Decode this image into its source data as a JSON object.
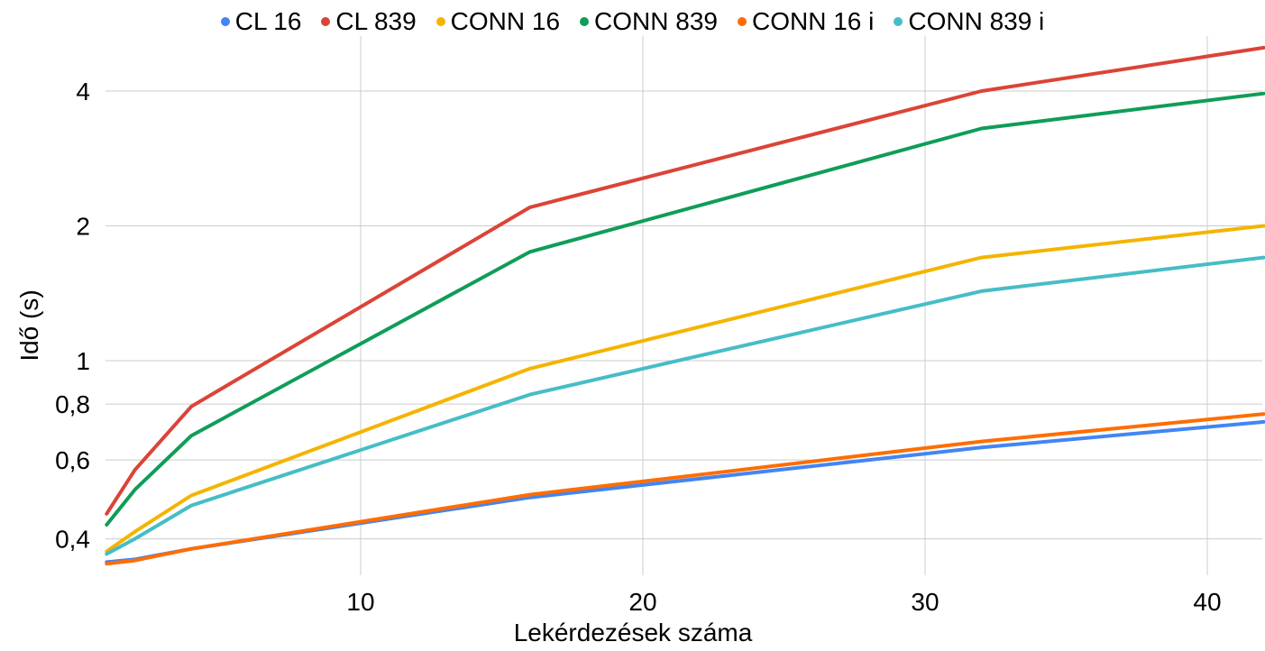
{
  "chart_data": {
    "type": "line",
    "title": "",
    "xlabel": "Lekérdezések száma",
    "ylabel": "Idő (s)",
    "y_scale": "log",
    "xlim": [
      1,
      42
    ],
    "ylim": [
      0.33,
      5
    ],
    "x_ticks": [
      {
        "value": 10,
        "label": "10"
      },
      {
        "value": 20,
        "label": "20"
      },
      {
        "value": 30,
        "label": "30"
      },
      {
        "value": 40,
        "label": "40"
      }
    ],
    "y_ticks": [
      {
        "value": 0.4,
        "label": "0,4"
      },
      {
        "value": 0.6,
        "label": "0,6"
      },
      {
        "value": 0.8,
        "label": "0,8"
      },
      {
        "value": 1,
        "label": "1"
      },
      {
        "value": 2,
        "label": "2"
      },
      {
        "value": 4,
        "label": "4"
      }
    ],
    "grid": true,
    "legend_position": "top",
    "x": [
      1,
      2,
      4,
      16,
      32,
      42
    ],
    "series": [
      {
        "name": "CL 16",
        "color": "#4285f4",
        "values": [
          0.355,
          0.36,
          0.38,
          0.495,
          0.64,
          0.73
        ]
      },
      {
        "name": "CL 839",
        "color": "#db4437",
        "values": [
          0.455,
          0.57,
          0.79,
          2.2,
          4.0,
          5.0
        ]
      },
      {
        "name": "CONN 16",
        "color": "#f4b400",
        "values": [
          0.375,
          0.415,
          0.5,
          0.96,
          1.7,
          2.0
        ]
      },
      {
        "name": "CONN 839",
        "color": "#0f9d58",
        "values": [
          0.43,
          0.515,
          0.68,
          1.75,
          3.3,
          3.95
        ]
      },
      {
        "name": "CONN 16 i",
        "color": "#ff6d01",
        "values": [
          0.352,
          0.358,
          0.38,
          0.502,
          0.66,
          0.76
        ]
      },
      {
        "name": "CONN 839 i",
        "color": "#46bdc6",
        "values": [
          0.37,
          0.4,
          0.475,
          0.84,
          1.43,
          1.7
        ]
      }
    ]
  }
}
